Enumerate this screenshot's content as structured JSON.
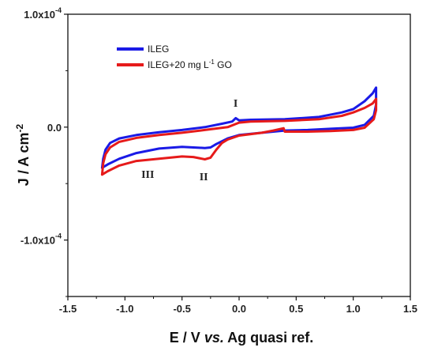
{
  "chart_data": {
    "type": "line",
    "xlabel_parts": [
      "E / V ",
      "vs.",
      " Ag quasi ref."
    ],
    "ylabel_main": "J / A cm",
    "ylabel_sup": "-2",
    "xlim": [
      -1.5,
      1.5
    ],
    "ylim": [
      -0.00015,
      0.0001
    ],
    "xticks": [
      {
        "value": -1.5,
        "label": "-1.5"
      },
      {
        "value": -1.0,
        "label": "-1.0"
      },
      {
        "value": -0.5,
        "label": "-0.5"
      },
      {
        "value": 0.0,
        "label": "0.0"
      },
      {
        "value": 0.5,
        "label": "0.5"
      },
      {
        "value": 1.0,
        "label": "1.0"
      },
      {
        "value": 1.5,
        "label": "1.5"
      }
    ],
    "yticks": [
      {
        "value": 0.0001,
        "label_main": "1.0x10",
        "label_sup": "-4"
      },
      {
        "value": 0.0,
        "label_main": "0.0",
        "label_sup": ""
      },
      {
        "value": -0.0001,
        "label_main": "-1.0x10",
        "label_sup": "-4"
      }
    ],
    "legend": {
      "placement": "top-left",
      "entries": [
        {
          "main": "ILEG",
          "sup": "",
          "tail": ""
        },
        {
          "main": "ILEG+20 mg L",
          "sup": "-1",
          "tail": " GO"
        }
      ]
    },
    "annotations": [
      {
        "text": "I",
        "x": -0.03,
        "y": 1.8e-05
      },
      {
        "text": "II",
        "x": -0.31,
        "y": -4.7e-05
      },
      {
        "text": "III",
        "x": -0.8,
        "y": -4.5e-05
      }
    ],
    "series": [
      {
        "name": "ILEG",
        "color": "#1a1ae6",
        "points": [
          [
            -1.2,
            -3.6e-05
          ],
          [
            -1.19,
            -2.8e-05
          ],
          [
            -1.17,
            -2e-05
          ],
          [
            -1.13,
            -1.4e-05
          ],
          [
            -1.05,
            -1e-05
          ],
          [
            -0.9,
            -7e-06
          ],
          [
            -0.7,
            -4.5e-06
          ],
          [
            -0.5,
            -2.5e-06
          ],
          [
            -0.3,
            0.0
          ],
          [
            -0.15,
            3e-06
          ],
          [
            -0.06,
            5e-06
          ],
          [
            -0.03,
            8e-06
          ],
          [
            0.0,
            6e-06
          ],
          [
            0.1,
            6.5e-06
          ],
          [
            0.4,
            7e-06
          ],
          [
            0.7,
            9e-06
          ],
          [
            0.9,
            1.3e-05
          ],
          [
            1.0,
            1.6e-05
          ],
          [
            1.1,
            2.3e-05
          ],
          [
            1.17,
            3e-05
          ],
          [
            1.2,
            3.5e-05
          ],
          [
            1.2,
            2e-05
          ],
          [
            1.18,
            1e-05
          ],
          [
            1.1,
            2e-06
          ],
          [
            1.0,
            -5e-07
          ],
          [
            0.8,
            -1.5e-06
          ],
          [
            0.6,
            -2.5e-06
          ],
          [
            0.4,
            -3e-06
          ],
          [
            0.3,
            -4e-06
          ],
          [
            0.2,
            -5e-06
          ],
          [
            0.0,
            -7e-06
          ],
          [
            -0.1,
            -1e-05
          ],
          [
            -0.2,
            -1.5e-05
          ],
          [
            -0.25,
            -1.8e-05
          ],
          [
            -0.3,
            -1.85e-05
          ],
          [
            -0.5,
            -1.75e-05
          ],
          [
            -0.7,
            -1.9e-05
          ],
          [
            -0.9,
            -2.3e-05
          ],
          [
            -1.05,
            -2.8e-05
          ],
          [
            -1.15,
            -3.3e-05
          ],
          [
            -1.2,
            -3.6e-05
          ]
        ]
      },
      {
        "name": "ILEG+20 mg L-1 GO",
        "color": "#e61a1a",
        "points": [
          [
            -1.2,
            -4.2e-05
          ],
          [
            -1.19,
            -3.2e-05
          ],
          [
            -1.17,
            -2.4e-05
          ],
          [
            -1.13,
            -1.8e-05
          ],
          [
            -1.05,
            -1.3e-05
          ],
          [
            -0.9,
            -9.5e-06
          ],
          [
            -0.7,
            -7e-06
          ],
          [
            -0.5,
            -5e-06
          ],
          [
            -0.3,
            -2.5e-06
          ],
          [
            -0.1,
            0.0
          ],
          [
            0.0,
            4e-06
          ],
          [
            0.1,
            5e-06
          ],
          [
            0.4,
            5.5e-06
          ],
          [
            0.7,
            7e-06
          ],
          [
            0.9,
            1e-05
          ],
          [
            1.0,
            1.3e-05
          ],
          [
            1.1,
            1.7e-05
          ],
          [
            1.17,
            2.1e-05
          ],
          [
            1.2,
            2.5e-05
          ],
          [
            1.2,
            1.5e-05
          ],
          [
            1.18,
            7e-06
          ],
          [
            1.1,
            -5e-07
          ],
          [
            1.0,
            -2.5e-06
          ],
          [
            0.8,
            -3.5e-06
          ],
          [
            0.6,
            -4e-06
          ],
          [
            0.4,
            -4e-06
          ],
          [
            0.39,
            -1e-06
          ],
          [
            0.3,
            -3e-06
          ],
          [
            0.2,
            -5e-06
          ],
          [
            0.0,
            -7.5e-06
          ],
          [
            -0.1,
            -1.1e-05
          ],
          [
            -0.15,
            -1.4e-05
          ],
          [
            -0.2,
            -2e-05
          ],
          [
            -0.25,
            -2.7e-05
          ],
          [
            -0.3,
            -2.85e-05
          ],
          [
            -0.4,
            -2.65e-05
          ],
          [
            -0.5,
            -2.6e-05
          ],
          [
            -0.7,
            -2.8e-05
          ],
          [
            -0.9,
            -3e-05
          ],
          [
            -1.05,
            -3.4e-05
          ],
          [
            -1.15,
            -3.9e-05
          ],
          [
            -1.2,
            -4.2e-05
          ]
        ]
      }
    ]
  }
}
